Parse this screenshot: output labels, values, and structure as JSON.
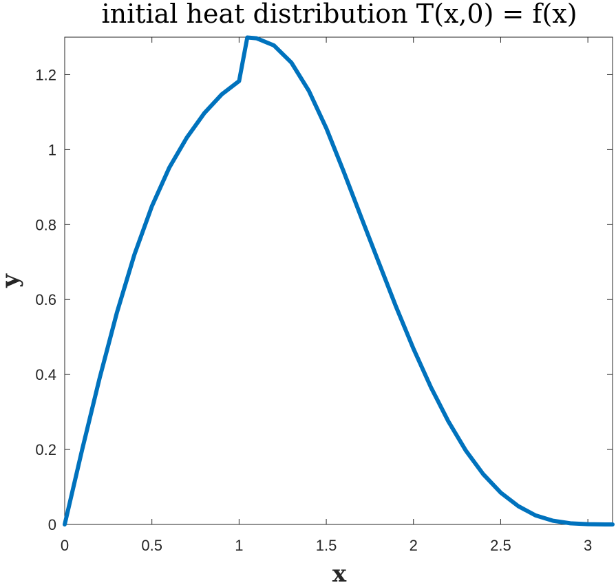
{
  "chart_data": {
    "type": "line",
    "title": "initial heat distribution T(x,0) = f(x)",
    "xlabel": "x",
    "ylabel": "y",
    "xlim": [
      0,
      3.14159
    ],
    "ylim": [
      0,
      1.3
    ],
    "grid": false,
    "x_ticks": [
      0,
      0.5,
      1,
      1.5,
      2,
      2.5,
      3
    ],
    "x_tick_labels": [
      "0",
      "0.5",
      "1",
      "1.5",
      "2",
      "2.5",
      "3"
    ],
    "y_ticks": [
      0,
      0.2,
      0.4,
      0.6,
      0.8,
      1.0,
      1.2
    ],
    "y_tick_labels": [
      "0",
      "0.2",
      "0.4",
      "0.6",
      "0.8",
      "1",
      "1.2"
    ],
    "series": [
      {
        "color": "#0072BD",
        "x": [
          0,
          0.1,
          0.2,
          0.3,
          0.4,
          0.5,
          0.6,
          0.7,
          0.8,
          0.9,
          1.0,
          1.0472,
          1.1,
          1.2,
          1.3,
          1.4,
          1.5,
          1.6,
          1.7,
          1.8,
          1.9,
          2.0,
          2.1,
          2.2,
          2.3,
          2.4,
          2.5,
          2.6,
          2.7,
          2.8,
          2.9,
          3.0,
          3.1,
          3.1416
        ],
        "y": [
          0,
          0.199,
          0.39,
          0.566,
          0.72,
          0.849,
          0.952,
          1.032,
          1.097,
          1.147,
          1.183,
          1.299,
          1.297,
          1.278,
          1.232,
          1.157,
          1.057,
          0.941,
          0.82,
          0.7,
          0.581,
          0.469,
          0.366,
          0.275,
          0.197,
          0.134,
          0.085,
          0.049,
          0.024,
          0.01,
          0.003,
          0.0007,
          3e-05,
          0
        ]
      }
    ]
  }
}
